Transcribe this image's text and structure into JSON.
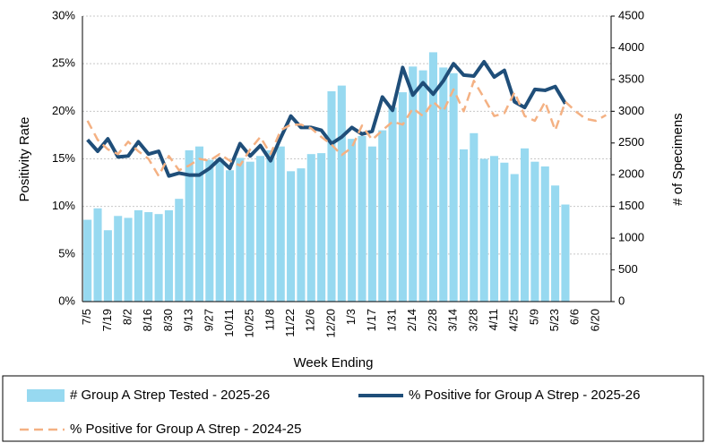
{
  "chart_data": {
    "type": "bar",
    "x_label": "Week Ending",
    "y_label": "Positivity Rate",
    "y2_label": "# of Specimens",
    "categories": [
      "7/5",
      null,
      "7/19",
      null,
      "8/2",
      null,
      "8/16",
      null,
      "8/30",
      null,
      "9/13",
      null,
      "9/27",
      null,
      "10/11",
      null,
      "10/25",
      null,
      "11/8",
      null,
      "11/22",
      null,
      "12/6",
      null,
      "12/20",
      null,
      "1/3",
      null,
      "1/17",
      null,
      "1/31",
      null,
      "2/14",
      null,
      "2/28",
      null,
      "3/14",
      null,
      "3/28",
      null,
      "4/11",
      null,
      "4/25",
      null,
      "5/9",
      null,
      "5/23",
      null,
      "6/6",
      null,
      "6/20",
      null
    ],
    "ylim": [
      0,
      30
    ],
    "yticks": [
      {
        "value": 0,
        "label": "0%"
      },
      {
        "value": 5,
        "label": "5%"
      },
      {
        "value": 10,
        "label": "10%"
      },
      {
        "value": 15,
        "label": "15%"
      },
      {
        "value": 20,
        "label": "20%"
      },
      {
        "value": 25,
        "label": "25%"
      },
      {
        "value": 30,
        "label": "30%"
      }
    ],
    "y2lim": [
      0,
      4500
    ],
    "y2ticks": [
      0,
      500,
      1000,
      1500,
      2000,
      2500,
      3000,
      3500,
      4000,
      4500
    ],
    "grid": true,
    "series": [
      {
        "name": "# Group A Strep Tested - 2025-26",
        "type": "bar",
        "axis": "y2",
        "color": "#97d9f0",
        "values": [
          1290,
          1470,
          1125,
          1350,
          1320,
          1440,
          1410,
          1380,
          1440,
          1620,
          2385,
          2445,
          2235,
          2250,
          2070,
          2265,
          2205,
          2295,
          2385,
          2445,
          2055,
          2100,
          2325,
          2340,
          3315,
          3405,
          2565,
          2610,
          2445,
          2700,
          3060,
          3300,
          3705,
          3645,
          3930,
          3690,
          3600,
          2400,
          2655,
          2250,
          2295,
          2190,
          2010,
          2415,
          2205,
          2130,
          1830,
          1530,
          null,
          null,
          null,
          null
        ]
      },
      {
        "name": "% Positive for Group A Strep - 2025-26",
        "type": "line",
        "color": "#1f4e79",
        "values": [
          17.0,
          15.8,
          17.1,
          15.2,
          15.3,
          16.8,
          15.5,
          15.8,
          13.2,
          13.5,
          13.3,
          13.3,
          14.0,
          15.0,
          14.0,
          16.6,
          15.3,
          16.4,
          14.8,
          17.2,
          19.5,
          18.3,
          18.3,
          18.0,
          16.6,
          17.3,
          18.3,
          17.6,
          17.9,
          21.5,
          20.1,
          24.6,
          21.7,
          23.0,
          21.8,
          23.2,
          25.0,
          23.8,
          23.7,
          25.2,
          23.6,
          24.3,
          21.0,
          20.4,
          22.3,
          22.2,
          22.6,
          20.8,
          null,
          null,
          null,
          null
        ]
      },
      {
        "name": "% Positive for Group A Strep - 2024-25",
        "type": "line",
        "dashed": true,
        "color": "#f4b183",
        "values": [
          19.0,
          17.0,
          16.0,
          15.5,
          16.8,
          15.8,
          15.0,
          13.2,
          15.3,
          13.8,
          14.3,
          15.0,
          14.8,
          15.5,
          14.8,
          14.3,
          16.0,
          17.3,
          15.5,
          18.0,
          18.6,
          18.6,
          18.2,
          17.3,
          16.5,
          15.4,
          16.2,
          18.5,
          17.0,
          18.0,
          18.9,
          18.6,
          20.3,
          19.5,
          21.0,
          20.0,
          22.3,
          20.0,
          23.2,
          21.4,
          19.5,
          19.8,
          22.0,
          19.5,
          19.0,
          21.0,
          18.0,
          21.0,
          20.0,
          19.2,
          19.0,
          19.6
        ]
      }
    ]
  }
}
